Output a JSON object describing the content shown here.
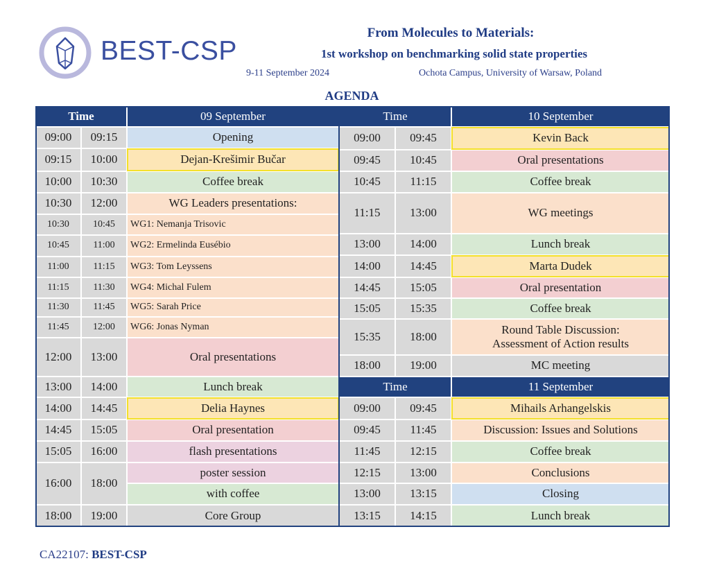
{
  "header": {
    "brand": "BEST-CSP",
    "title": "From Molecules to Materials:",
    "subtitle": "1st workshop on benchmarking solid state properties",
    "dates": "9-11 September 2024",
    "venue": "Ochota Campus, University of Warsaw, Poland",
    "agenda": "AGENDA"
  },
  "colors": {
    "navy": "#21427f",
    "time_gray": "#d9d9d9",
    "opening_blue": "#cfdff0",
    "speaker_yellow": "#fde6b6",
    "speaker_border": "#f3e02a",
    "break_green": "#d7e9d3",
    "oral_pink": "#f3cfd1",
    "meeting_peach": "#fbe0cb",
    "flash_lavender": "#ecd2e0"
  },
  "day1": {
    "time_header": "Time",
    "day_header": "09 September",
    "rows": [
      {
        "start": "09:00",
        "end": "09:15",
        "event": "Opening"
      },
      {
        "start": "09:15",
        "end": "10:00",
        "event": "Dejan-Krešimir Bučar"
      },
      {
        "start": "10:00",
        "end": "10:30",
        "event": "Coffee break"
      },
      {
        "start": "10:30",
        "end": "12:00",
        "event": "WG Leaders presentations:"
      },
      {
        "start": "12:00",
        "end": "13:00",
        "event": "Oral presentations"
      },
      {
        "start": "13:00",
        "end": "14:00",
        "event": "Lunch break"
      },
      {
        "start": "14:00",
        "end": "14:45",
        "event": "Delia Haynes"
      },
      {
        "start": "14:45",
        "end": "15:05",
        "event": "Oral presentation"
      },
      {
        "start": "15:05",
        "end": "16:00",
        "event": "flash presentations"
      },
      {
        "start": "16:00",
        "end": "18:00",
        "event": "poster session",
        "event2": "with coffee"
      },
      {
        "start": "18:00",
        "end": "19:00",
        "event": "Core Group"
      }
    ],
    "wg": [
      {
        "start": "10:30",
        "end": "10:45",
        "label": "WG1: Nemanja Trisovic"
      },
      {
        "start": "10:45",
        "end": "11:00",
        "label": "WG2: Ermelinda Eusébio"
      },
      {
        "start": "11:00",
        "end": "11:15",
        "label": "WG3: Tom Leyssens"
      },
      {
        "start": "11:15",
        "end": "11:30",
        "label": "WG4: Michal Fulem"
      },
      {
        "start": "11:30",
        "end": "11:45",
        "label": "WG5: Sarah Price"
      },
      {
        "start": "11:45",
        "end": "12:00",
        "label": "WG6: Jonas Nyman"
      }
    ]
  },
  "day2": {
    "time_header": "Time",
    "day_header": "10 September",
    "rows": [
      {
        "start": "09:00",
        "end": "09:45",
        "event": "Kevin Back"
      },
      {
        "start": "09:45",
        "end": "10:45",
        "event": "Oral presentations"
      },
      {
        "start": "10:45",
        "end": "11:15",
        "event": "Coffee break"
      },
      {
        "start": "11:15",
        "end": "13:00",
        "event": "WG meetings"
      },
      {
        "start": "13:00",
        "end": "14:00",
        "event": "Lunch break"
      },
      {
        "start": "14:00",
        "end": "14:45",
        "event": "Marta Dudek"
      },
      {
        "start": "14:45",
        "end": "15:05",
        "event": "Oral presentation"
      },
      {
        "start": "15:05",
        "end": "15:35",
        "event": "Coffee break"
      },
      {
        "start": "15:35",
        "end": "18:00",
        "event": "Round Table Discussion:",
        "event2": "Assessment of Action results"
      },
      {
        "start": "18:00",
        "end": "19:00",
        "event": "MC meeting"
      }
    ]
  },
  "day3": {
    "time_header": "Time",
    "day_header": "11 September",
    "rows": [
      {
        "start": "09:00",
        "end": "09:45",
        "event": "Mihails Arhangelskis"
      },
      {
        "start": "09:45",
        "end": "11:45",
        "event": "Discussion: Issues and Solutions"
      },
      {
        "start": "11:45",
        "end": "12:15",
        "event": "Coffee break"
      },
      {
        "start": "12:15",
        "end": "13:00",
        "event": "Conclusions"
      },
      {
        "start": "13:00",
        "end": "13:15",
        "event": "Closing"
      },
      {
        "start": "13:15",
        "end": "14:15",
        "event": "Lunch break"
      }
    ]
  },
  "footer": {
    "code": "CA22107:",
    "name": "BEST-CSP"
  }
}
